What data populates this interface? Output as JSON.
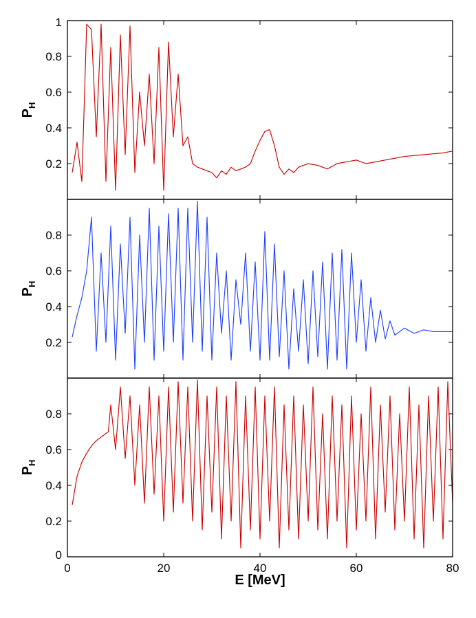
{
  "chart_data": [
    {
      "type": "line",
      "ylabel": "P",
      "ylabel_sub": "H",
      "xlim": [
        0,
        80
      ],
      "ylim": [
        0,
        1
      ],
      "y_ticks": [
        {
          "value": 0.2,
          "label": "0.2"
        },
        {
          "value": 0.4,
          "label": "0.4"
        },
        {
          "value": 0.6,
          "label": "0.6"
        },
        {
          "value": 0.8,
          "label": "0.8"
        },
        {
          "value": 1.0,
          "label": "1"
        }
      ],
      "x_ticks": [
        0,
        20,
        40,
        60,
        80
      ],
      "series": [
        {
          "color": "#cc0000",
          "x": [
            1,
            2,
            3,
            4,
            5,
            6,
            7,
            8,
            9,
            10,
            11,
            12,
            13,
            14,
            15,
            16,
            17,
            18,
            19,
            20,
            21,
            22,
            23,
            24,
            25,
            26,
            27,
            28,
            29,
            30,
            31,
            32,
            33,
            34,
            35,
            36,
            37,
            38,
            39,
            40,
            41,
            42,
            43,
            44,
            45,
            46,
            47,
            48,
            49,
            50,
            52,
            54,
            56,
            58,
            60,
            62,
            64,
            66,
            68,
            70,
            72,
            74,
            76,
            78,
            80
          ],
          "y": [
            0.15,
            0.32,
            0.1,
            0.98,
            0.95,
            0.35,
            0.98,
            0.1,
            0.85,
            0.05,
            0.92,
            0.25,
            0.97,
            0.15,
            0.6,
            0.3,
            0.7,
            0.2,
            0.85,
            0.05,
            0.88,
            0.35,
            0.7,
            0.3,
            0.35,
            0.2,
            0.18,
            0.17,
            0.16,
            0.15,
            0.12,
            0.16,
            0.14,
            0.18,
            0.16,
            0.17,
            0.18,
            0.2,
            0.27,
            0.33,
            0.38,
            0.39,
            0.3,
            0.18,
            0.14,
            0.17,
            0.15,
            0.18,
            0.19,
            0.2,
            0.19,
            0.17,
            0.2,
            0.21,
            0.22,
            0.2,
            0.21,
            0.22,
            0.23,
            0.24,
            0.245,
            0.25,
            0.255,
            0.26,
            0.27
          ]
        }
      ]
    },
    {
      "type": "line",
      "ylabel": "P",
      "ylabel_sub": "H",
      "xlim": [
        0,
        80
      ],
      "ylim": [
        0,
        1
      ],
      "y_ticks": [
        {
          "value": 0.2,
          "label": "0.2"
        },
        {
          "value": 0.4,
          "label": "0.4"
        },
        {
          "value": 0.6,
          "label": "0.6"
        },
        {
          "value": 0.8,
          "label": "0.8"
        }
      ],
      "x_ticks": [
        0,
        20,
        40,
        60,
        80
      ],
      "series": [
        {
          "color": "#1f3fff",
          "x": [
            1,
            2,
            3,
            4,
            5,
            6,
            7,
            8,
            9,
            10,
            11,
            12,
            13,
            14,
            15,
            16,
            17,
            18,
            19,
            20,
            21,
            22,
            23,
            24,
            25,
            26,
            27,
            28,
            29,
            30,
            31,
            32,
            33,
            34,
            35,
            36,
            37,
            38,
            39,
            40,
            41,
            42,
            43,
            44,
            45,
            46,
            47,
            48,
            49,
            50,
            51,
            52,
            53,
            54,
            55,
            56,
            57,
            58,
            59,
            60,
            61,
            62,
            63,
            64,
            65,
            66,
            67,
            68,
            70,
            72,
            74,
            76,
            78,
            80
          ],
          "y": [
            0.23,
            0.35,
            0.45,
            0.6,
            0.9,
            0.15,
            0.7,
            0.2,
            0.85,
            0.1,
            0.75,
            0.25,
            0.9,
            0.05,
            0.8,
            0.2,
            0.95,
            0.1,
            0.85,
            0.15,
            0.92,
            0.2,
            0.95,
            0.1,
            0.95,
            0.2,
            0.99,
            0.15,
            0.9,
            0.1,
            0.7,
            0.25,
            0.6,
            0.1,
            0.55,
            0.3,
            0.7,
            0.15,
            0.65,
            0.1,
            0.82,
            0.1,
            0.75,
            0.12,
            0.6,
            0.05,
            0.5,
            0.15,
            0.55,
            0.08,
            0.6,
            0.12,
            0.65,
            0.05,
            0.7,
            0.1,
            0.72,
            0.05,
            0.7,
            0.2,
            0.55,
            0.15,
            0.45,
            0.2,
            0.38,
            0.22,
            0.32,
            0.24,
            0.28,
            0.25,
            0.27,
            0.26,
            0.26,
            0.26
          ]
        }
      ]
    },
    {
      "type": "line",
      "xlabel": "E [MeV]",
      "ylabel": "P",
      "ylabel_sub": "H",
      "xlim": [
        0,
        80
      ],
      "ylim": [
        0,
        1
      ],
      "y_ticks": [
        {
          "value": 0,
          "label": "0"
        },
        {
          "value": 0.2,
          "label": "0.2"
        },
        {
          "value": 0.4,
          "label": "0.4"
        },
        {
          "value": 0.6,
          "label": "0.6"
        },
        {
          "value": 0.8,
          "label": "0.8"
        }
      ],
      "x_ticks": [
        {
          "value": 0,
          "label": "0"
        },
        {
          "value": 20,
          "label": "20"
        },
        {
          "value": 40,
          "label": "40"
        },
        {
          "value": 60,
          "label": "60"
        },
        {
          "value": 80,
          "label": "80"
        }
      ],
      "series": [
        {
          "color": "#cc0000",
          "x": [
            1,
            2,
            3,
            4,
            5,
            6,
            7,
            8,
            8.5,
            9,
            10,
            11,
            12,
            13,
            14,
            15,
            16,
            17,
            18,
            19,
            20,
            21,
            22,
            23,
            24,
            25,
            26,
            27,
            28,
            29,
            30,
            31,
            32,
            33,
            34,
            35,
            36,
            37,
            38,
            39,
            40,
            41,
            42,
            43,
            44,
            45,
            46,
            47,
            48,
            49,
            50,
            51,
            52,
            53,
            54,
            55,
            56,
            57,
            58,
            59,
            60,
            61,
            62,
            63,
            64,
            65,
            66,
            67,
            68,
            69,
            70,
            71,
            72,
            73,
            74,
            75,
            76,
            77,
            78,
            79,
            80
          ],
          "y": [
            0.29,
            0.45,
            0.53,
            0.58,
            0.62,
            0.65,
            0.67,
            0.69,
            0.7,
            0.85,
            0.6,
            0.95,
            0.55,
            0.9,
            0.4,
            0.85,
            0.3,
            0.95,
            0.35,
            0.9,
            0.2,
            0.95,
            0.25,
            0.98,
            0.3,
            0.95,
            0.2,
            0.99,
            0.15,
            0.9,
            0.25,
            0.95,
            0.1,
            0.9,
            0.2,
            0.98,
            0.05,
            0.9,
            0.15,
            0.95,
            0.1,
            0.9,
            0.2,
            0.95,
            0.05,
            0.85,
            0.15,
            0.9,
            0.1,
            0.85,
            0.2,
            0.95,
            0.15,
            0.8,
            0.1,
            0.9,
            0.2,
            0.85,
            0.05,
            0.9,
            0.15,
            0.8,
            0.2,
            0.95,
            0.1,
            0.85,
            0.25,
            0.9,
            0.15,
            0.8,
            0.2,
            0.95,
            0.1,
            0.85,
            0.05,
            0.9,
            0.2,
            0.95,
            0.1,
            0.98,
            0.3
          ]
        }
      ]
    }
  ]
}
